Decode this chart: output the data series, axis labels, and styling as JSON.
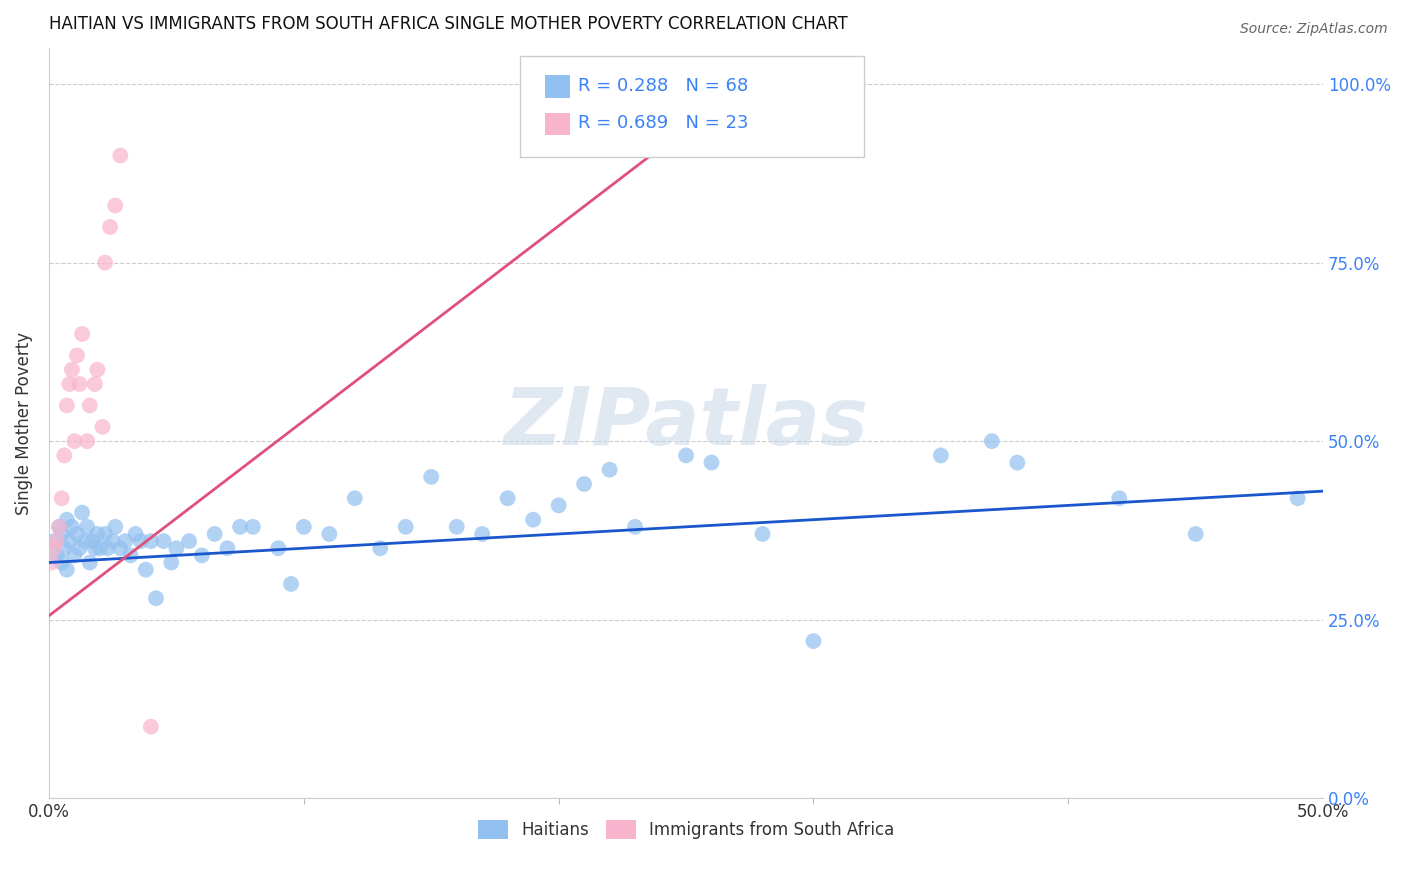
{
  "title": "HAITIAN VS IMMIGRANTS FROM SOUTH AFRICA SINGLE MOTHER POVERTY CORRELATION CHART",
  "source": "Source: ZipAtlas.com",
  "xlim": [
    0.0,
    0.5
  ],
  "ylim": [
    0.0,
    1.05
  ],
  "haitian_R": 0.288,
  "haitian_N": 68,
  "sa_R": 0.689,
  "sa_N": 23,
  "haitian_color": "#92c0f0",
  "sa_color": "#f8b4cc",
  "trendline_haitian_color": "#1a56cc",
  "trendline_sa_color": "#e0507a",
  "watermark": "ZIPatlas",
  "legend_color": "#3b82f6",
  "haitian_x": [
    0.002,
    0.003,
    0.004,
    0.005,
    0.005,
    0.006,
    0.007,
    0.007,
    0.008,
    0.009,
    0.01,
    0.011,
    0.012,
    0.013,
    0.014,
    0.015,
    0.016,
    0.017,
    0.018,
    0.019,
    0.02,
    0.022,
    0.023,
    0.025,
    0.026,
    0.028,
    0.03,
    0.032,
    0.034,
    0.036,
    0.038,
    0.04,
    0.042,
    0.045,
    0.048,
    0.05,
    0.055,
    0.06,
    0.065,
    0.07,
    0.075,
    0.08,
    0.09,
    0.095,
    0.1,
    0.11,
    0.12,
    0.13,
    0.14,
    0.15,
    0.16,
    0.17,
    0.18,
    0.19,
    0.2,
    0.21,
    0.22,
    0.23,
    0.25,
    0.26,
    0.28,
    0.3,
    0.35,
    0.37,
    0.38,
    0.42,
    0.45,
    0.49
  ],
  "haitian_y": [
    0.36,
    0.34,
    0.38,
    0.33,
    0.37,
    0.35,
    0.39,
    0.32,
    0.36,
    0.38,
    0.34,
    0.37,
    0.35,
    0.4,
    0.36,
    0.38,
    0.33,
    0.36,
    0.35,
    0.37,
    0.35,
    0.37,
    0.35,
    0.36,
    0.38,
    0.35,
    0.36,
    0.34,
    0.37,
    0.36,
    0.32,
    0.36,
    0.28,
    0.36,
    0.33,
    0.35,
    0.36,
    0.34,
    0.37,
    0.35,
    0.38,
    0.38,
    0.35,
    0.3,
    0.38,
    0.37,
    0.42,
    0.35,
    0.38,
    0.45,
    0.38,
    0.37,
    0.42,
    0.39,
    0.41,
    0.44,
    0.46,
    0.38,
    0.48,
    0.47,
    0.37,
    0.22,
    0.48,
    0.5,
    0.47,
    0.42,
    0.37,
    0.42
  ],
  "sa_x": [
    0.001,
    0.002,
    0.003,
    0.004,
    0.005,
    0.006,
    0.007,
    0.008,
    0.009,
    0.01,
    0.011,
    0.012,
    0.013,
    0.015,
    0.016,
    0.018,
    0.019,
    0.021,
    0.022,
    0.024,
    0.026,
    0.028,
    0.04
  ],
  "sa_y": [
    0.33,
    0.35,
    0.36,
    0.38,
    0.42,
    0.48,
    0.55,
    0.58,
    0.6,
    0.5,
    0.62,
    0.58,
    0.65,
    0.5,
    0.55,
    0.58,
    0.6,
    0.52,
    0.75,
    0.8,
    0.83,
    0.9,
    0.1
  ],
  "haitian_trend_x0": 0.0,
  "haitian_trend_x1": 0.5,
  "haitian_trend_y0": 0.33,
  "haitian_trend_y1": 0.43,
  "sa_trend_x0": -0.002,
  "sa_trend_x1": 0.28,
  "sa_trend_y0": 0.25,
  "sa_trend_y1": 1.02
}
